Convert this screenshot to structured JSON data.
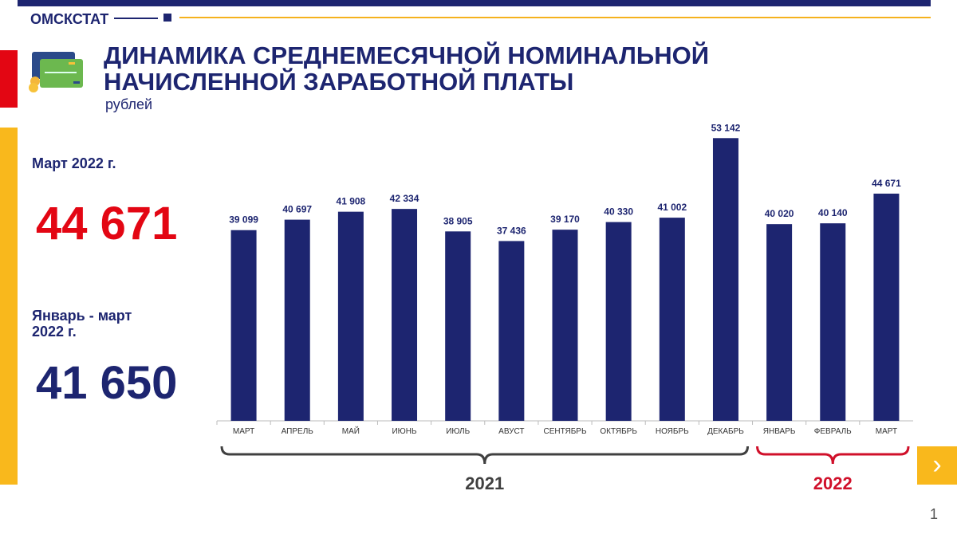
{
  "header": {
    "brand": "ОМСКСТАТ",
    "title_line1": "ДИНАМИКА СРЕДНЕМЕСЯЧНОЙ НОМИНАЛЬНОЙ",
    "title_line2": "НАЧИСЛЕННОЙ ЗАРАБОТНОЙ ПЛАТЫ",
    "unit": "рублей"
  },
  "summary": {
    "month_label": "Март 2022 г.",
    "month_value": "44 671",
    "period_label_1": "Январь - март",
    "period_label_2": "2022 г.",
    "period_value": "41 650"
  },
  "nav": {
    "next_icon": "chevron-right-icon",
    "next_glyph": "›",
    "page_number": "1"
  },
  "colors": {
    "navy": "#1d2570",
    "red": "#e30613",
    "yellow": "#f9b81c"
  },
  "chart_data": {
    "type": "bar",
    "categories": [
      "МАРТ",
      "АПРЕЛЬ",
      "МАЙ",
      "ИЮНЬ",
      "ИЮЛЬ",
      "АВУСТ",
      "СЕНТЯБРЬ",
      "ОКТЯБРЬ",
      "НОЯБРЬ",
      "ДЕКАБРЬ",
      "ЯНВАРЬ",
      "ФЕВРАЛЬ",
      "МАРТ"
    ],
    "values": [
      39099,
      40697,
      41908,
      42334,
      38905,
      37436,
      39170,
      40330,
      41002,
      53142,
      40020,
      40140,
      44671
    ],
    "labels": [
      "39 099",
      "40 697",
      "41 908",
      "42 334",
      "38 905",
      "37 436",
      "39 170",
      "40 330",
      "41 002",
      "53 142",
      "40 020",
      "40 140",
      "44 671"
    ],
    "groups": [
      {
        "label": "2021",
        "from": 0,
        "to": 9,
        "color": "#404040"
      },
      {
        "label": "2022",
        "from": 10,
        "to": 12,
        "color": "#d0102a"
      }
    ],
    "ylim": [
      10000,
      55000
    ],
    "grid": false,
    "legend": "none"
  }
}
